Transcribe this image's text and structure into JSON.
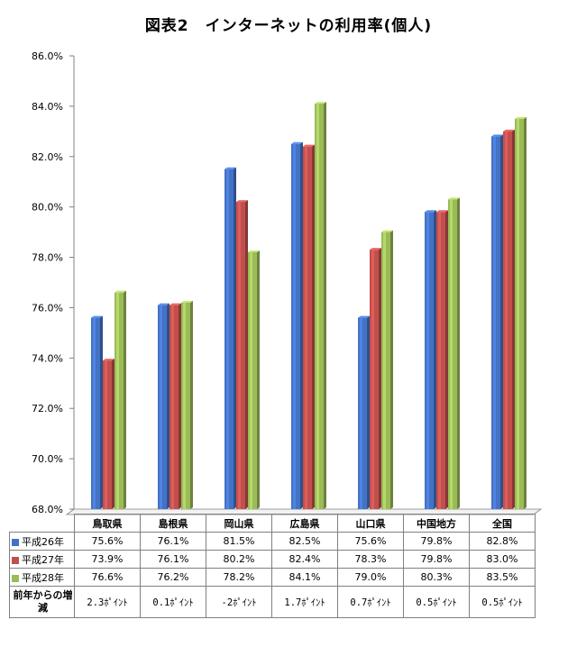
{
  "chart_data": {
    "type": "bar",
    "title": "図表2　インターネットの利用率(個人)",
    "categories": [
      "鳥取県",
      "島根県",
      "岡山県",
      "広島県",
      "山口県",
      "中国地方",
      "全国"
    ],
    "series": [
      {
        "name": "平成26年",
        "color": "#4472C4",
        "values": [
          75.6,
          76.1,
          81.5,
          82.5,
          75.6,
          79.8,
          82.8
        ],
        "labels": [
          "75.6%",
          "76.1%",
          "81.5%",
          "82.5%",
          "75.6%",
          "79.8%",
          "82.8%"
        ]
      },
      {
        "name": "平成27年",
        "color": "#C0504D",
        "values": [
          73.9,
          76.1,
          80.2,
          82.4,
          78.3,
          79.8,
          83.0
        ],
        "labels": [
          "73.9%",
          "76.1%",
          "80.2%",
          "82.4%",
          "78.3%",
          "79.8%",
          "83.0%"
        ]
      },
      {
        "name": "平成28年",
        "color": "#9BBB59",
        "values": [
          76.6,
          76.2,
          78.2,
          84.1,
          79.0,
          80.3,
          83.5
        ],
        "labels": [
          "76.6%",
          "76.2%",
          "78.2%",
          "84.1%",
          "79.0%",
          "80.3%",
          "83.5%"
        ]
      }
    ],
    "ylim": [
      68.0,
      86.0
    ],
    "yticks": [
      "68.0%",
      "70.0%",
      "72.0%",
      "74.0%",
      "76.0%",
      "78.0%",
      "80.0%",
      "82.0%",
      "84.0%",
      "86.0%"
    ],
    "grid": false,
    "legend": "data-table-left"
  },
  "table": {
    "diff_row_label": "前年からの増減",
    "diff_values": [
      "2.3ﾎﾟｲﾝﾄ",
      "0.1ﾎﾟｲﾝﾄ",
      "-2ﾎﾟｲﾝﾄ",
      "1.7ﾎﾟｲﾝﾄ",
      "0.7ﾎﾟｲﾝﾄ",
      "0.5ﾎﾟｲﾝﾄ",
      "0.5ﾎﾟｲﾝﾄ"
    ]
  }
}
